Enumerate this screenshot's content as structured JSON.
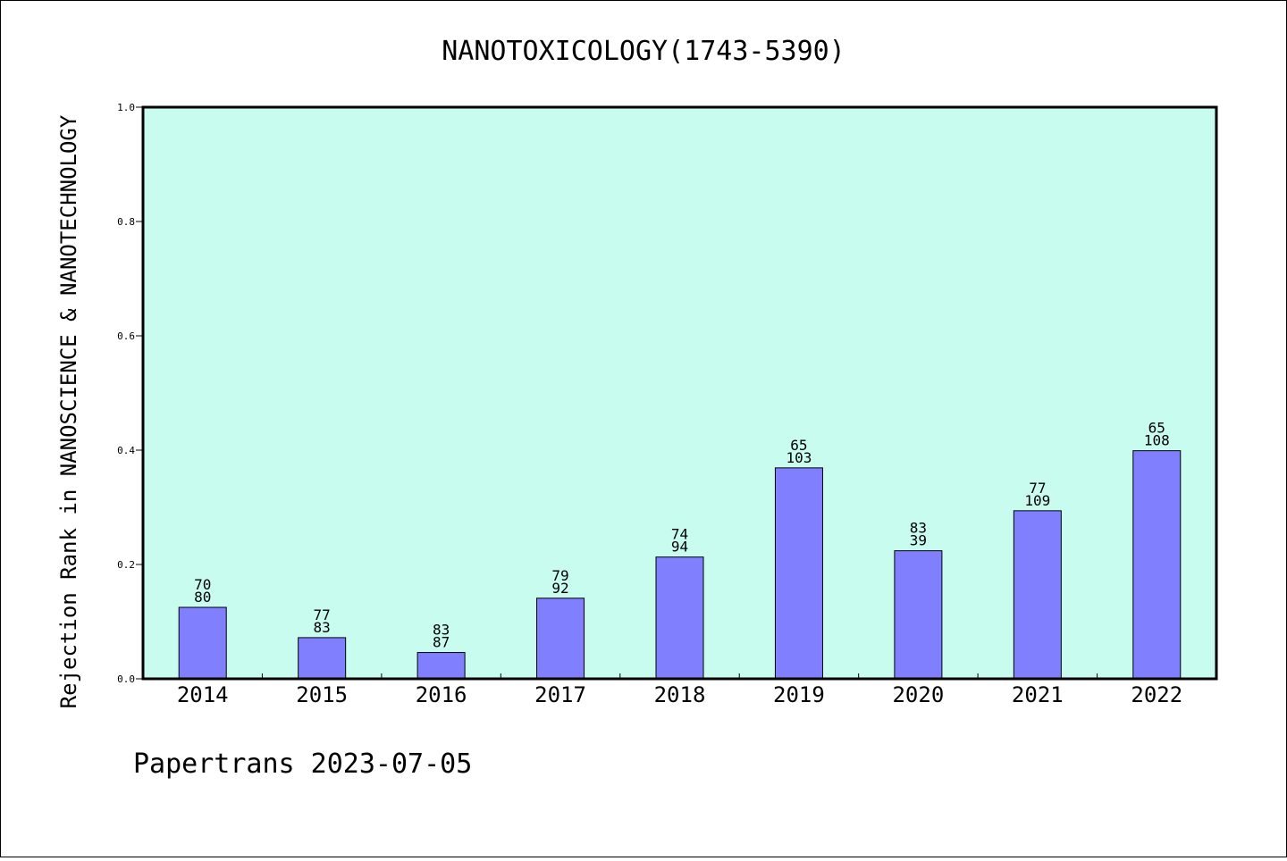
{
  "chart_data": {
    "type": "bar",
    "title": "NANOTOXICOLOGY(1743-5390)",
    "xlabel": "",
    "ylabel": "Rejection Rank in NANOSCIENCE & NANOTECHNOLOGY",
    "ylim": [
      0,
      1.0
    ],
    "yticks": [
      "0.0",
      "0.2",
      "0.4",
      "0.6",
      "0.8",
      "1.0"
    ],
    "categories": [
      "2014",
      "2015",
      "2016",
      "2017",
      "2018",
      "2019",
      "2020",
      "2021",
      "2022"
    ],
    "values": [
      0.125,
      0.072,
      0.046,
      0.141,
      0.213,
      0.369,
      0.224,
      0.294,
      0.399
    ],
    "labels_top": [
      "70",
      "77",
      "83",
      "79",
      "74",
      "65",
      "83",
      "77",
      "65"
    ],
    "labels_bottom": [
      "80",
      "83",
      "87",
      "92",
      "94",
      "103",
      "39",
      "109",
      "108"
    ],
    "grid": false,
    "colors": {
      "plot_bg": "#c8fcee",
      "bar": "#8080ff",
      "bar_edge": "#000000"
    }
  },
  "footer": {
    "text": "Papertrans 2023-07-05"
  }
}
